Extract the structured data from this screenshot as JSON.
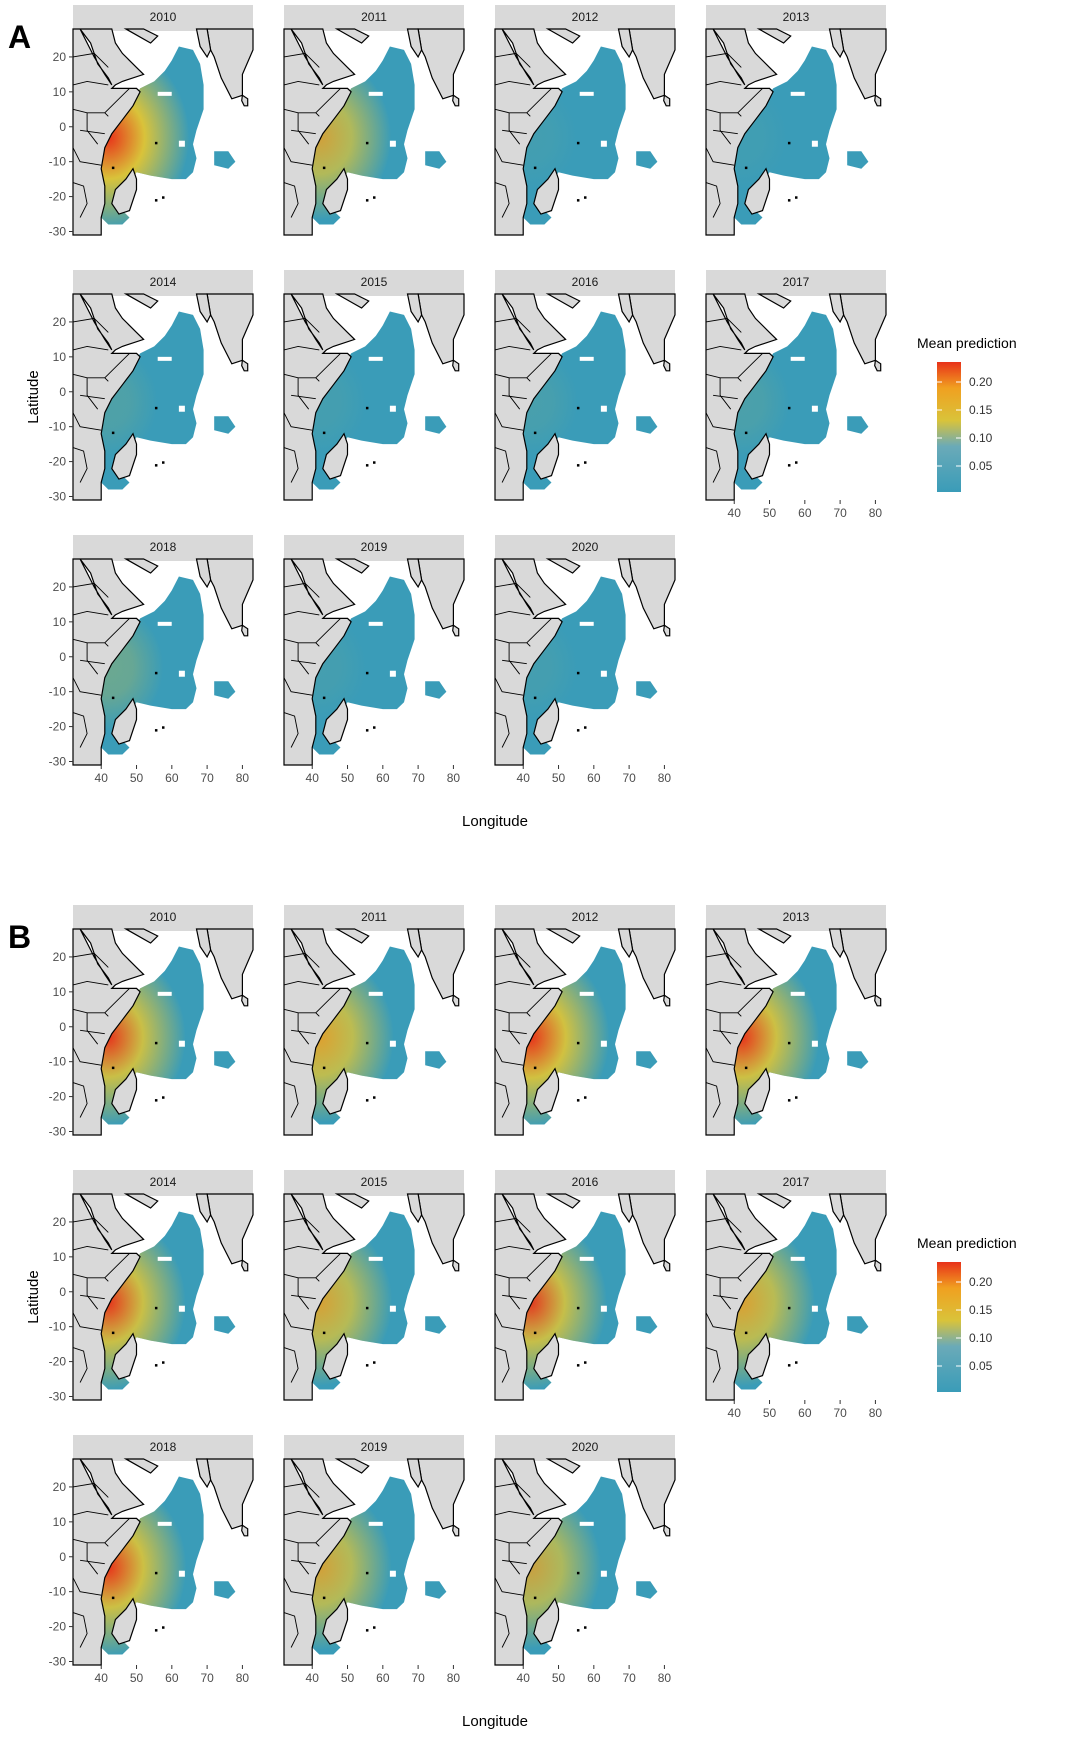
{
  "panels": [
    {
      "label": "A",
      "facets": [
        {
          "year": "2010",
          "hot": 1.0
        },
        {
          "year": "2011",
          "hot": 0.75
        },
        {
          "year": "2012",
          "hot": 0.05
        },
        {
          "year": "2013",
          "hot": 0.04
        },
        {
          "year": "2014",
          "hot": 0.12
        },
        {
          "year": "2015",
          "hot": 0.06
        },
        {
          "year": "2016",
          "hot": 0.08
        },
        {
          "year": "2017",
          "hot": 0.1
        },
        {
          "year": "2018",
          "hot": 0.28
        },
        {
          "year": "2019",
          "hot": 0.06
        },
        {
          "year": "2020",
          "hot": 0.06
        }
      ],
      "xlabel": "Longitude",
      "ylabel": "Latitude",
      "legend": {
        "title": "Mean prediction",
        "ticks": [
          "0.20",
          "0.15",
          "0.10",
          "0.05"
        ]
      }
    },
    {
      "label": "B",
      "facets": [
        {
          "year": "2010",
          "hot": 0.9
        },
        {
          "year": "2011",
          "hot": 0.82
        },
        {
          "year": "2012",
          "hot": 0.95
        },
        {
          "year": "2013",
          "hot": 0.92
        },
        {
          "year": "2014",
          "hot": 0.9
        },
        {
          "year": "2015",
          "hot": 0.78
        },
        {
          "year": "2016",
          "hot": 0.88
        },
        {
          "year": "2017",
          "hot": 0.8
        },
        {
          "year": "2018",
          "hot": 0.92
        },
        {
          "year": "2019",
          "hot": 0.76
        },
        {
          "year": "2020",
          "hot": 0.72
        }
      ],
      "xlabel": "Longitude",
      "ylabel": "Latitude",
      "legend": {
        "title": "Mean prediction",
        "ticks": [
          "0.20",
          "0.15",
          "0.10",
          "0.05"
        ]
      }
    }
  ],
  "x_ticks": [
    "40",
    "50",
    "60",
    "70",
    "80"
  ],
  "y_ticks": [
    "20",
    "10",
    "0",
    "-10",
    "-20",
    "-30"
  ],
  "colors": {
    "low": "#3a9cb8",
    "mid": "#d9c33a",
    "high": "#e8321a",
    "land": "#d9d9d9",
    "strip": "#d9d9d9",
    "coast": "#000000"
  }
}
